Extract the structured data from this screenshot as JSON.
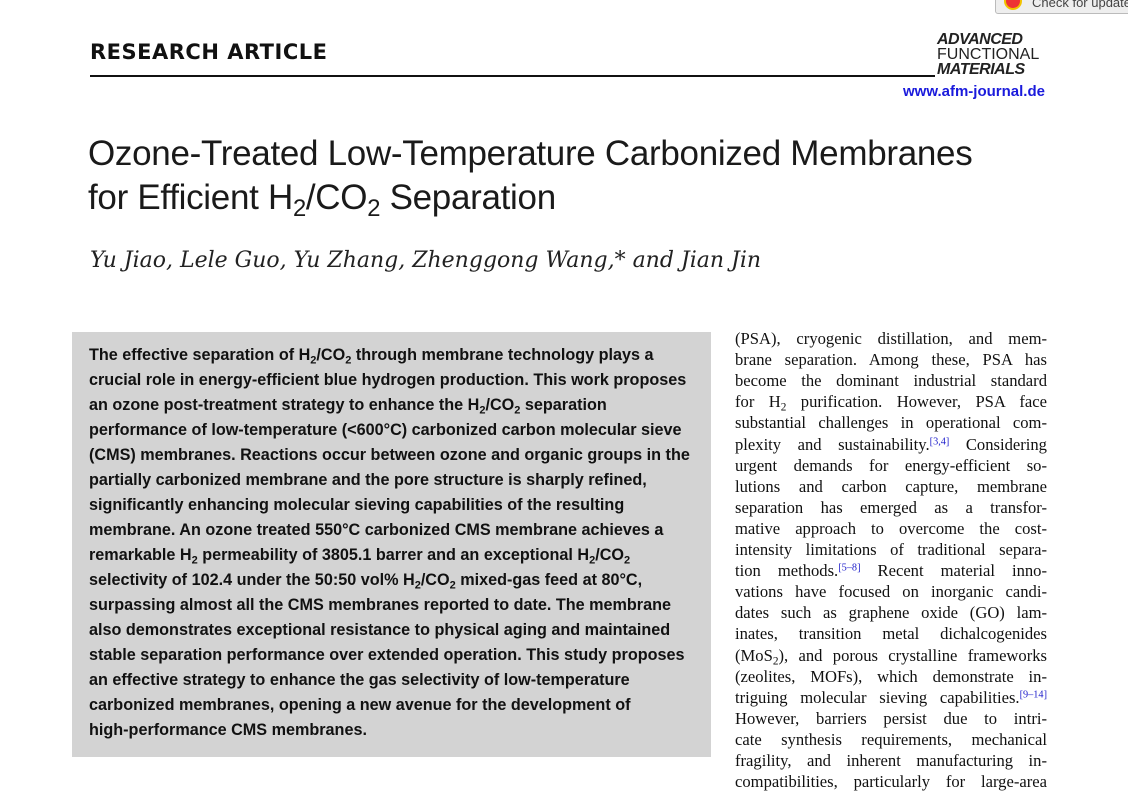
{
  "update_button": {
    "label": "Check for updates"
  },
  "header": {
    "section": "RESEARCH ARTICLE",
    "journal_logo": [
      "ADVANCED",
      "FUNCTIONAL",
      "MATERIALS"
    ],
    "url": "www.afm-journal.de"
  },
  "title_lines": [
    "Ozone-Treated Low-Temperature Carbonized Membranes",
    "for Efficient H_{2}/CO_{2} Separation"
  ],
  "authors": "Yu Jiao, Lele Guo, Yu Zhang, Zhenggong Wang,* and Jian Jin",
  "abstract_lines": [
    "The effective separation of H_{2}/CO_{2} through membrane technology plays a",
    "crucial role in energy-efficient blue hydrogen production. This work proposes",
    "an ozone post-treatment strategy to enhance the H_{2}/CO_{2} separation",
    "performance of low-temperature (<600°C) carbonized carbon molecular sieve",
    "(CMS) membranes. Reactions occur between ozone and organic groups in the",
    "partially carbonized membrane and the pore structure is sharply refined,",
    "significantly enhancing molecular sieving capabilities of the resulting",
    "membrane. An ozone treated 550°C carbonized CMS membrane achieves a",
    "remarkable H_{2} permeability of 3805.1 barrer and an exceptional H_{2}/CO_{2}",
    "selectivity of 102.4 under the 50:50 vol% H_{2}/CO_{2} mixed-gas feed at 80°C,",
    "surpassing almost all the CMS membranes reported to date. The membrane",
    "also demonstrates exceptional resistance to physical aging and maintained",
    "stable separation performance over extended operation. This study proposes",
    "an effective strategy to enhance the gas selectivity of low-temperature",
    "carbonized membranes, opening a new avenue for the development of",
    "high-performance CMS membranes."
  ],
  "body_lines": [
    "(PSA), cryogenic distillation, and mem-",
    "brane separation. Among these, PSA has",
    "become the dominant industrial standard",
    "for H_{2} purification. However, PSA face",
    "substantial challenges in operational com-",
    "plexity and sustainability.^{[3,4]} Considering",
    "urgent demands for energy-efficient so-",
    "lutions and carbon capture, membrane",
    "separation has emerged as a transfor-",
    "mative approach to overcome the cost-",
    "intensity limitations of traditional separa-",
    "tion methods.^{[5–8]} Recent material inno-",
    "vations have focused on inorganic candi-",
    "dates such as graphene oxide (GO) lam-",
    "inates, transition metal dichalcogenides",
    "(MoS_{2}), and porous crystalline frameworks",
    "(zeolites, MOFs), which demonstrate in-",
    "triguing molecular sieving capabilities.^{[9–14]}",
    "However, barriers persist due to intri-",
    "cate synthesis requirements, mechanical",
    "fragility, and inherent manufacturing in-",
    "compatibilities, particularly for large-area"
  ]
}
